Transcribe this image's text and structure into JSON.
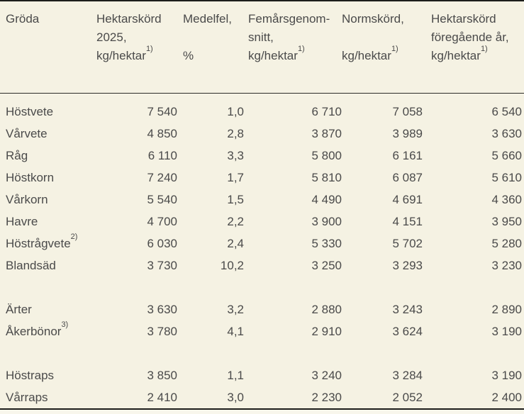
{
  "colors": {
    "background": "#f5f2e3",
    "text": "#4a4a4a",
    "rule": "#1d1d1b"
  },
  "chart_data": {
    "type": "table",
    "columns": [
      {
        "key": "groda",
        "line1": "Gröda",
        "line2": "",
        "line3": "",
        "line3_sup": ""
      },
      {
        "key": "hektarskord_2025",
        "line1": "Hektarskörd",
        "line2": "2025,",
        "line3": "kg/hektar",
        "line3_sup": "1)"
      },
      {
        "key": "medelfel",
        "line1": "Medelfel,",
        "line2": "",
        "line3": "%",
        "line3_sup": ""
      },
      {
        "key": "femarsgenomsnitt",
        "line1": "Femårsgenom-",
        "line2": "snitt,",
        "line3": "kg/hektar",
        "line3_sup": "1)"
      },
      {
        "key": "normskord",
        "line1": "Normskörd,",
        "line2": "",
        "line3": "kg/hektar",
        "line3_sup": "1)"
      },
      {
        "key": "hektarskord_foregaende_ar",
        "line1": "Hektarskörd",
        "line2": "föregående år,",
        "line3": "kg/hektar",
        "line3_sup": "1)"
      }
    ],
    "rows": [
      {
        "crop": "Höstvete",
        "crop_sup": "",
        "hektarskord_2025": "7 540",
        "medelfel": "1,0",
        "femarsgenomsnitt": "6 710",
        "normskord": "7 058",
        "foregaende_ar": "6 540"
      },
      {
        "crop": "Vårvete",
        "crop_sup": "",
        "hektarskord_2025": "4 850",
        "medelfel": "2,8",
        "femarsgenomsnitt": "3 870",
        "normskord": "3 989",
        "foregaende_ar": "3 630"
      },
      {
        "crop": "Råg",
        "crop_sup": "",
        "hektarskord_2025": "6 110",
        "medelfel": "3,3",
        "femarsgenomsnitt": "5 800",
        "normskord": "6 161",
        "foregaende_ar": "5 660"
      },
      {
        "crop": "Höstkorn",
        "crop_sup": "",
        "hektarskord_2025": "7 240",
        "medelfel": "1,7",
        "femarsgenomsnitt": "5 810",
        "normskord": "6 087",
        "foregaende_ar": "5 610"
      },
      {
        "crop": "Vårkorn",
        "crop_sup": "",
        "hektarskord_2025": "5 540",
        "medelfel": "1,5",
        "femarsgenomsnitt": "4 490",
        "normskord": "4 691",
        "foregaende_ar": "4 360"
      },
      {
        "crop": "Havre",
        "crop_sup": "",
        "hektarskord_2025": "4 700",
        "medelfel": "2,2",
        "femarsgenomsnitt": "3 900",
        "normskord": "4 151",
        "foregaende_ar": "3 950"
      },
      {
        "crop": "Höstrågvete",
        "crop_sup": "2)",
        "hektarskord_2025": "6 030",
        "medelfel": "2,4",
        "femarsgenomsnitt": "5 330",
        "normskord": "5 702",
        "foregaende_ar": "5 280"
      },
      {
        "crop": "Blandsäd",
        "crop_sup": "",
        "hektarskord_2025": "3 730",
        "medelfel": "10,2",
        "femarsgenomsnitt": "3 250",
        "normskord": "3 293",
        "foregaende_ar": "3 230"
      },
      {
        "crop": "Ärter",
        "crop_sup": "",
        "hektarskord_2025": "3 630",
        "medelfel": "3,2",
        "femarsgenomsnitt": "2 880",
        "normskord": "3 243",
        "foregaende_ar": "2 890"
      },
      {
        "crop": "Åkerbönor",
        "crop_sup": "3)",
        "hektarskord_2025": "3 780",
        "medelfel": "4,1",
        "femarsgenomsnitt": "2 910",
        "normskord": "3 624",
        "foregaende_ar": "3 190"
      },
      {
        "crop": "Höstraps",
        "crop_sup": "",
        "hektarskord_2025": "3 850",
        "medelfel": "1,1",
        "femarsgenomsnitt": "3 240",
        "normskord": "3 284",
        "foregaende_ar": "3 190"
      },
      {
        "crop": "Vårraps",
        "crop_sup": "",
        "hektarskord_2025": "2 410",
        "medelfel": "3,0",
        "femarsgenomsnitt": "2 230",
        "normskord": "2 052",
        "foregaende_ar": "2 400"
      }
    ]
  }
}
